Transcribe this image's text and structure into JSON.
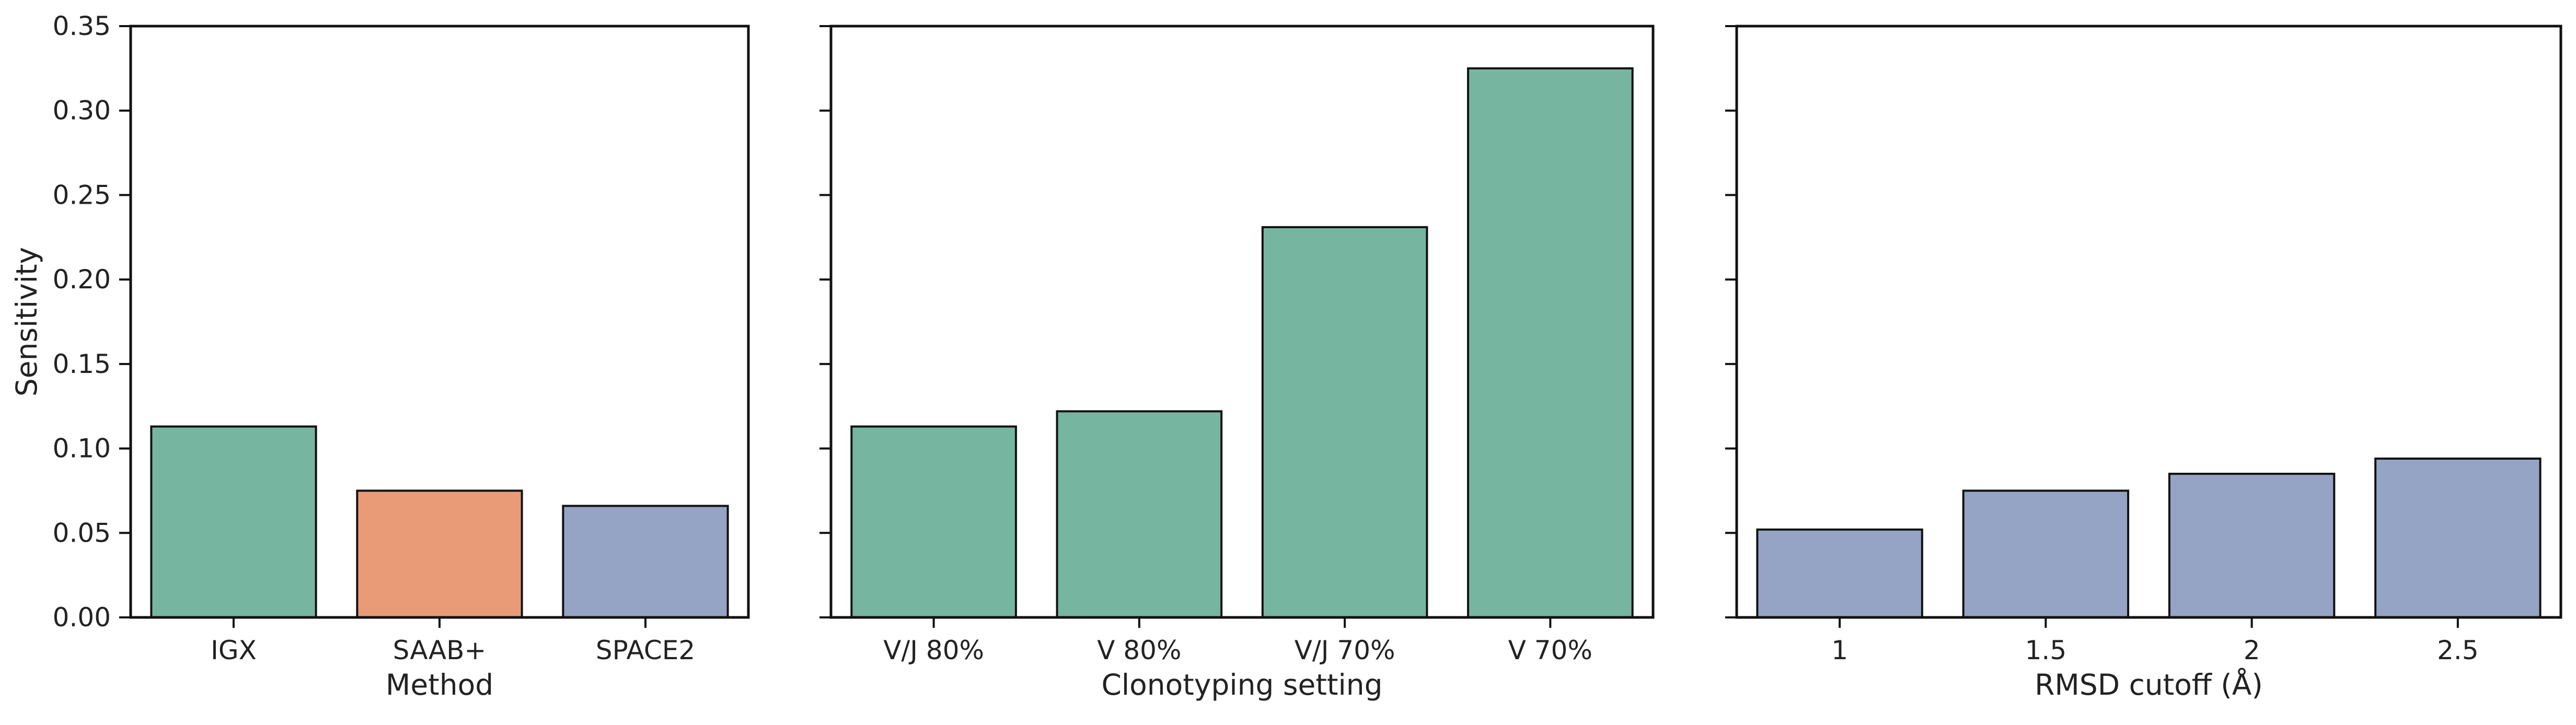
{
  "chart_data": [
    {
      "type": "bar",
      "xlabel": "Method",
      "ylabel": "Sensitivity",
      "ylim": [
        0,
        0.35
      ],
      "yticks": [
        "0.00",
        "0.05",
        "0.10",
        "0.15",
        "0.20",
        "0.25",
        "0.30",
        "0.35"
      ],
      "show_ytick_labels": true,
      "categories": [
        "IGX",
        "SAAB+",
        "SPACE2"
      ],
      "values": [
        0.113,
        0.075,
        0.066
      ],
      "colors": [
        "#76b6a1",
        "#e99a77",
        "#95a3c5"
      ],
      "grid": false
    },
    {
      "type": "bar",
      "xlabel": "Clonotyping setting",
      "ylabel": "",
      "ylim": [
        0,
        0.35
      ],
      "yticks": [
        "0.00",
        "0.05",
        "0.10",
        "0.15",
        "0.20",
        "0.25",
        "0.30",
        "0.35"
      ],
      "show_ytick_labels": false,
      "categories": [
        "V/J 80%",
        "V 80%",
        "V/J 70%",
        "V 70%"
      ],
      "values": [
        0.113,
        0.122,
        0.231,
        0.325
      ],
      "colors": [
        "#76b6a1",
        "#76b6a1",
        "#76b6a1",
        "#76b6a1"
      ],
      "grid": false
    },
    {
      "type": "bar",
      "xlabel": "RMSD cutoff (Å)",
      "ylabel": "",
      "ylim": [
        0,
        0.35
      ],
      "yticks": [
        "0.00",
        "0.05",
        "0.10",
        "0.15",
        "0.20",
        "0.25",
        "0.30",
        "0.35"
      ],
      "show_ytick_labels": false,
      "categories": [
        "1",
        "1.5",
        "2",
        "2.5"
      ],
      "values": [
        0.052,
        0.075,
        0.085,
        0.094
      ],
      "colors": [
        "#95a3c5",
        "#95a3c5",
        "#95a3c5",
        "#95a3c5"
      ],
      "grid": false
    }
  ]
}
